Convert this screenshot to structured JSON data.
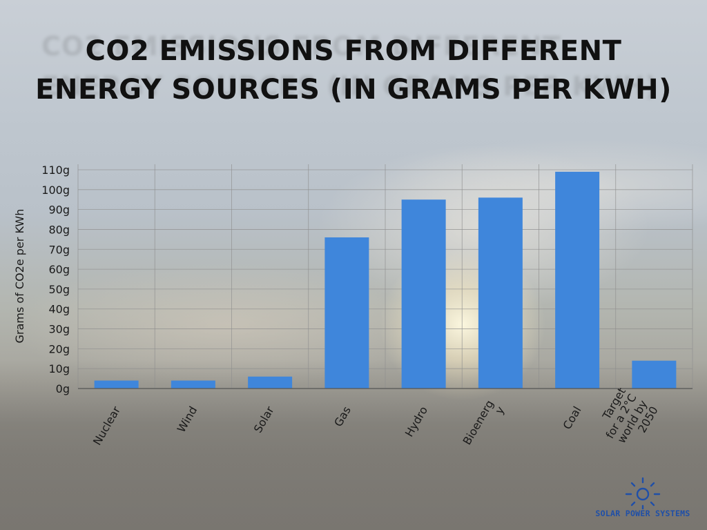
{
  "title": {
    "line1": "CO2 EMISSIONS FROM DIFFERENT",
    "line2": "ENERGY SOURCES (IN GRAMS PER KWH)"
  },
  "colors": {
    "bar": "#3f86db",
    "grid": "#8f8f8f",
    "text": "#1a1a1a",
    "logo": "#1f4fa8"
  },
  "chart_data": {
    "type": "bar",
    "title": "CO2 EMISSIONS FROM DIFFERENT ENERGY SOURCES (IN GRAMS PER KWH)",
    "xlabel": "",
    "ylabel": "Grams of CO2e per KWh",
    "ylim": [
      0,
      110
    ],
    "yticks": [
      0,
      10,
      20,
      30,
      40,
      50,
      60,
      70,
      80,
      90,
      100,
      110
    ],
    "ytick_labels": [
      "0g",
      "10g",
      "20g",
      "30g",
      "40g",
      "50g",
      "60g",
      "70g",
      "80g",
      "90g",
      "100g",
      "110g"
    ],
    "grid": true,
    "categories": [
      {
        "key": "nuclear",
        "lines": [
          "Nuclear"
        ]
      },
      {
        "key": "wind",
        "lines": [
          "Wind"
        ]
      },
      {
        "key": "solar",
        "lines": [
          "Solar"
        ]
      },
      {
        "key": "gas",
        "lines": [
          "Gas"
        ]
      },
      {
        "key": "hydro",
        "lines": [
          "Hydro"
        ]
      },
      {
        "key": "bioenergy",
        "lines": [
          "Bioenerg",
          "y"
        ]
      },
      {
        "key": "coal",
        "lines": [
          "Coal"
        ]
      },
      {
        "key": "target",
        "lines": [
          "Target",
          "for a 2°C",
          "world by",
          "2050"
        ]
      }
    ],
    "values": [
      4,
      4,
      6,
      76,
      95,
      96,
      109,
      14
    ]
  },
  "logo": {
    "icon": "sun-icon",
    "text": "SOLAR POWER SYSTEMS"
  }
}
